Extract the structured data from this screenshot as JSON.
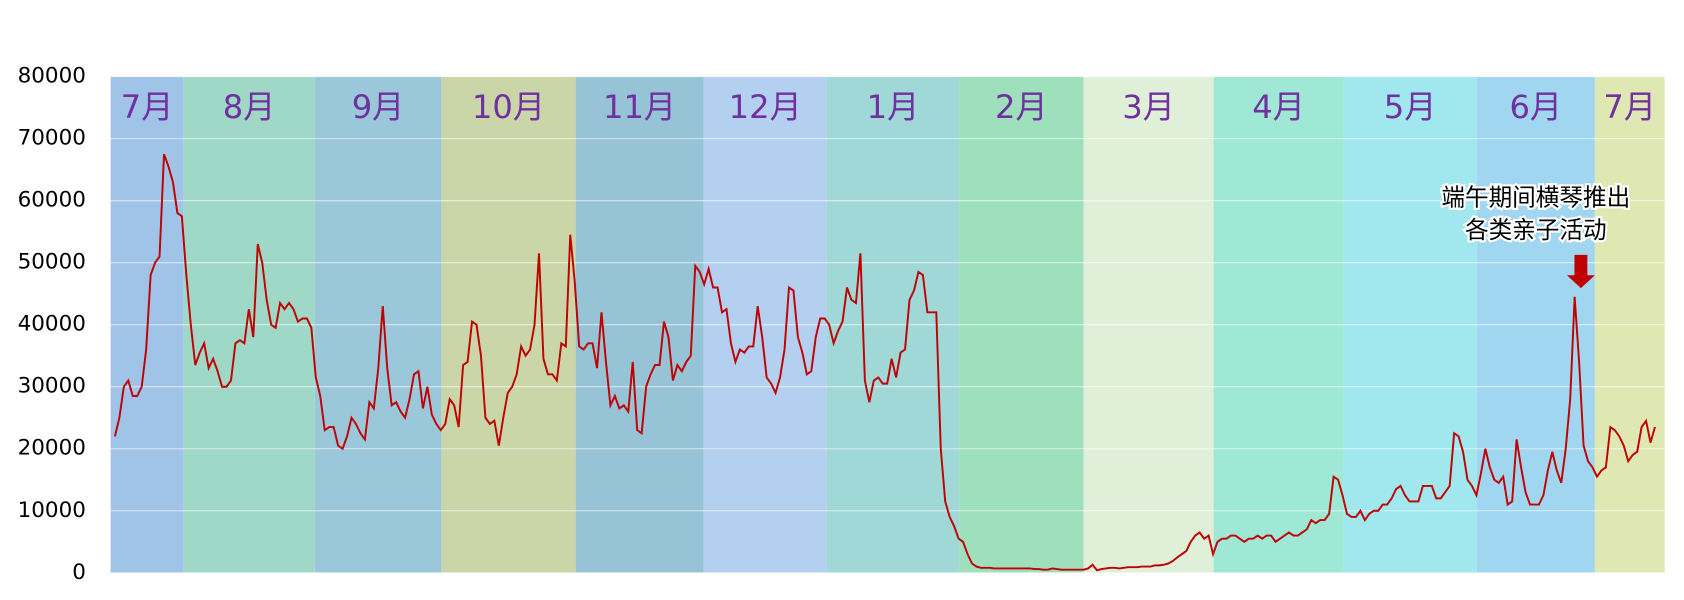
{
  "chart_data": {
    "type": "line",
    "color": "#c00000",
    "ylim": [
      0,
      80000
    ],
    "yticks": [
      0,
      10000,
      20000,
      30000,
      40000,
      50000,
      60000,
      70000,
      80000
    ],
    "grid": true,
    "bands": [
      {
        "label": "7月",
        "color": "#a0c4e8"
      },
      {
        "label": "8月",
        "color": "#a0d8c8"
      },
      {
        "label": "9月",
        "color": "#9ac8da"
      },
      {
        "label": "10月",
        "color": "#cad6a8"
      },
      {
        "label": "11月",
        "color": "#96c4d6"
      },
      {
        "label": "12月",
        "color": "#b4d0f0"
      },
      {
        "label": "1月",
        "color": "#a0d8d8"
      },
      {
        "label": "2月",
        "color": "#9ee0bc"
      },
      {
        "label": "3月",
        "color": "#e0f0d8"
      },
      {
        "label": "4月",
        "color": "#a0e8d6"
      },
      {
        "label": "5月",
        "color": "#a0e8ee"
      },
      {
        "label": "6月",
        "color": "#a0d6f0"
      },
      {
        "label": "7月",
        "color": "#dfe8b2"
      }
    ],
    "annotation": [
      "端午期间横琴推出",
      "各类亲子活动"
    ],
    "values": [
      22000,
      25000,
      30000,
      31000,
      28500,
      28500,
      30000,
      36000,
      48000,
      50000,
      51000,
      67500,
      65500,
      63000,
      58000,
      57500,
      48000,
      40000,
      33500,
      35500,
      37000,
      33000,
      34500,
      32500,
      30000,
      30000,
      31000,
      37000,
      37500,
      37000,
      42500,
      38000,
      53000,
      50000,
      44000,
      40000,
      39500,
      43500,
      42500,
      43500,
      42500,
      40500,
      41000,
      41000,
      39500,
      31500,
      28500,
      23000,
      23500,
      23500,
      20500,
      20000,
      22000,
      25000,
      24000,
      22500,
      21500,
      27500,
      26500,
      33000,
      43000,
      33000,
      27000,
      27500,
      26000,
      25000,
      28000,
      32000,
      32500,
      26500,
      30000,
      25500,
      24000,
      23000,
      24000,
      28000,
      27000,
      23500,
      33500,
      34000,
      40500,
      40000,
      35000,
      25000,
      24000,
      24500,
      20500,
      25000,
      29000,
      30000,
      32000,
      36500,
      35000,
      36000,
      40000,
      51500,
      34500,
      32000,
      32000,
      31000,
      37000,
      36500,
      54500,
      47000,
      36500,
      36000,
      37000,
      37000,
      33000,
      42000,
      34000,
      27000,
      28500,
      26500,
      27000,
      26000,
      34000,
      23000,
      22500,
      30000,
      32000,
      33500,
      33500,
      40500,
      38000,
      31000,
      33500,
      32500,
      34000,
      35000,
      49500,
      48500,
      46500,
      49000,
      46000,
      46000,
      42000,
      42500,
      37000,
      34000,
      36000,
      35500,
      36500,
      36500,
      43000,
      38000,
      31500,
      30500,
      29000,
      31500,
      36000,
      46000,
      45500,
      38000,
      35500,
      32000,
      32500,
      38000,
      41000,
      41000,
      40000,
      37000,
      39000,
      40500,
      46000,
      44000,
      43500,
      51500,
      31000,
      27500,
      31000,
      31500,
      30500,
      30500,
      34500,
      31500,
      35500,
      36000,
      44000,
      45500,
      48500,
      48000,
      42000,
      42000,
      42000,
      20000,
      11500,
      9000,
      7500,
      5500,
      5000,
      3000,
      1500,
      1000,
      800,
      800,
      800,
      700,
      700,
      700,
      700,
      700,
      700,
      700,
      700,
      700,
      600,
      600,
      500,
      500,
      700,
      600,
      500,
      500,
      500,
      500,
      500,
      500,
      700,
      1300,
      400,
      600,
      700,
      800,
      800,
      700,
      800,
      900,
      900,
      900,
      1000,
      1000,
      1000,
      1200,
      1200,
      1300,
      1500,
      1900,
      2500,
      3000,
      3500,
      5000,
      6000,
      6500,
      5500,
      6000,
      3000,
      5000,
      5500,
      5500,
      6000,
      6000,
      5500,
      5000,
      5500,
      5500,
      6000,
      5500,
      6000,
      6000,
      5000,
      5500,
      6000,
      6500,
      6000,
      6000,
      6500,
      7000,
      8500,
      8000,
      8500,
      8500,
      9500,
      15500,
      15000,
      12500,
      9500,
      9000,
      9000,
      10000,
      8500,
      9500,
      10000,
      10000,
      11000,
      11000,
      12000,
      13500,
      14000,
      12500,
      11500,
      11500,
      11500,
      14000,
      14000,
      14000,
      12000,
      12000,
      13000,
      14000,
      22500,
      22000,
      19500,
      15000,
      14000,
      12500,
      16000,
      20000,
      17000,
      15000,
      14500,
      15500,
      11000,
      11500,
      21500,
      17000,
      13000,
      11000,
      11000,
      11000,
      12500,
      16500,
      19500,
      16500,
      14500,
      20000,
      28000,
      44500,
      34000,
      20500,
      18000,
      17000,
      15500,
      16500,
      17000,
      23500,
      23000,
      22000,
      20500,
      18000,
      19000,
      19500,
      23500,
      24500,
      21000,
      23500
    ]
  }
}
